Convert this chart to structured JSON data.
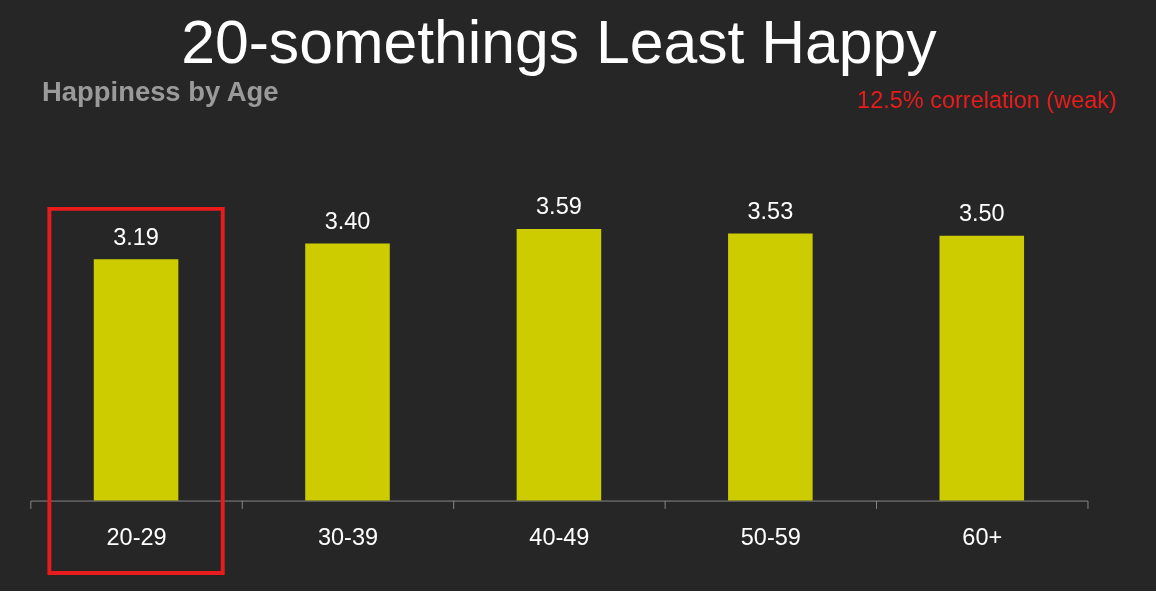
{
  "chart_data": {
    "type": "bar",
    "title": "20-somethings Least Happy",
    "subtitle": "Happiness by Age",
    "annotations": [
      "12.5% correlation (weak)"
    ],
    "categories": [
      "20-29",
      "30-39",
      "40-49",
      "50-59",
      "60+"
    ],
    "values": [
      3.19,
      3.4,
      3.59,
      3.53,
      3.5
    ],
    "value_labels": [
      "3.19",
      "3.40",
      "3.59",
      "3.53",
      "3.50"
    ],
    "color": "#cccc00",
    "grid": false
  }
}
